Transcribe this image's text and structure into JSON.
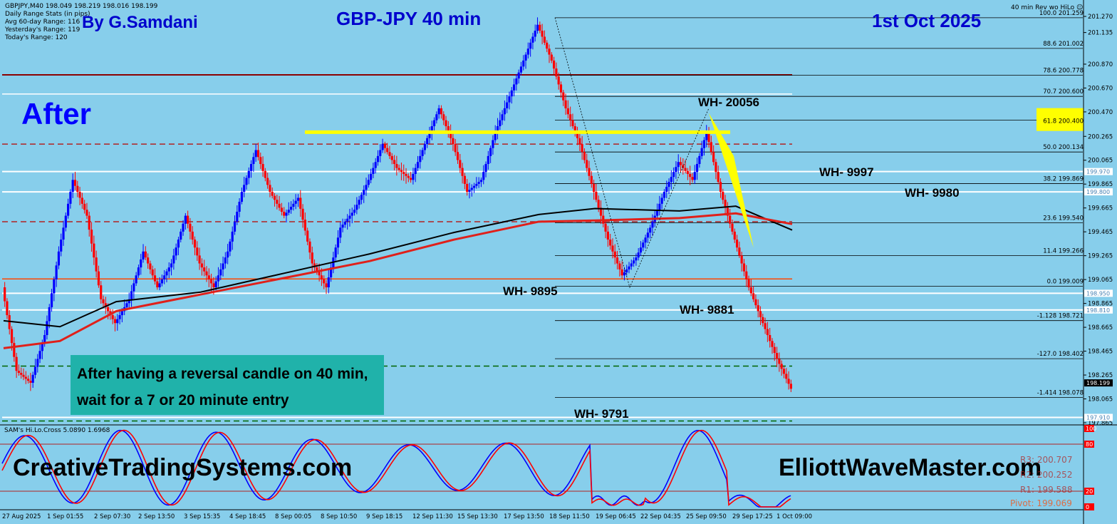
{
  "header": {
    "symbol_line": "GBPJPY,M40  198.049 198.219 198.016 198.199",
    "stats_title": "Daily Range Stats (in pips)",
    "stats_avg": "Avg 60-day Range: 116",
    "stats_yesterday": "Yesterday's Range: 119",
    "stats_today": "Today's Range: 120",
    "indicator_name": "40 min Rev wo HiLo"
  },
  "overlay": {
    "author": "By G.Samdani",
    "pair_title": "GBP-JPY 40 min",
    "date": "1st Oct 2025",
    "after_label": "After",
    "callout": "After having a reversal candle on 40 min, wait for a 7 or 20 minute entry",
    "site_left": "CreativeTradingSystems.com",
    "site_right": "ElliottWaveMaster.com"
  },
  "wave_labels": [
    "WH- 20056",
    "WH- 9997",
    "WH- 9980",
    "WH- 9895",
    "WH- 9881",
    "WH- 9791"
  ],
  "oscillator": {
    "name": "SAM's Hi.Lo.Cross 5.0890 1.6968",
    "scale_labels": [
      "100",
      "80",
      "20",
      "0"
    ],
    "pivot_overlay": [
      "R3: 200.707",
      "R2: 200.252",
      "R1: 199.588",
      "Pivot: 199.069"
    ]
  },
  "colors": {
    "background": "#87CEEB",
    "bull_candle": "#0000FF",
    "bear_candle": "#FF0000",
    "author_text": "#0000CD",
    "yellow_line": "#FFFF00",
    "callout_bg": "#20B2AA"
  },
  "chart_data": {
    "type": "candlestick",
    "title": "GBP-JPY 40 min",
    "symbol": "GBPJPY,M40",
    "ylim": [
      197.865,
      201.3
    ],
    "y_ticks": [
      "201.270",
      "201.135",
      "200.870",
      "200.670",
      "200.470",
      "200.265",
      "200.065",
      "199.865",
      "199.665",
      "199.465",
      "199.265",
      "199.065",
      "198.865",
      "198.665",
      "198.465",
      "198.265",
      "198.065",
      "197.865"
    ],
    "x_ticks": [
      "27 Aug 2025",
      "1 Sep 01:55",
      "2 Sep 07:30",
      "2 Sep 13:50",
      "3 Sep 15:35",
      "4 Sep 18:45",
      "8 Sep 00:05",
      "8 Sep 10:50",
      "9 Sep 18:15",
      "12 Sep 11:30",
      "15 Sep 13:30",
      "17 Sep 13:50",
      "18 Sep 11:50",
      "19 Sep 06:45",
      "22 Sep 04:35",
      "25 Sep 09:50",
      "29 Sep 17:25",
      "1 Oct 09:00"
    ],
    "price_path": [
      [
        0,
        199.0
      ],
      [
        1,
        198.3
      ],
      [
        2,
        198.2
      ],
      [
        3,
        198.6
      ],
      [
        4,
        199.3
      ],
      [
        5,
        199.9
      ],
      [
        6,
        199.6
      ],
      [
        7,
        198.9
      ],
      [
        8,
        198.7
      ],
      [
        9,
        198.9
      ],
      [
        10,
        199.3
      ],
      [
        11,
        199.0
      ],
      [
        12,
        199.2
      ],
      [
        13,
        199.6
      ],
      [
        14,
        199.2
      ],
      [
        15,
        199.0
      ],
      [
        16,
        199.3
      ],
      [
        17,
        199.8
      ],
      [
        18,
        200.15
      ],
      [
        19,
        199.8
      ],
      [
        20,
        199.6
      ],
      [
        21,
        199.75
      ],
      [
        22,
        199.2
      ],
      [
        23,
        199.0
      ],
      [
        24,
        199.5
      ],
      [
        25,
        199.65
      ],
      [
        26,
        199.9
      ],
      [
        27,
        200.2
      ],
      [
        28,
        200.0
      ],
      [
        29,
        199.9
      ],
      [
        30,
        200.2
      ],
      [
        31,
        200.5
      ],
      [
        32,
        200.2
      ],
      [
        33,
        199.8
      ],
      [
        34,
        199.9
      ],
      [
        35,
        200.3
      ],
      [
        36,
        200.6
      ],
      [
        37,
        200.9
      ],
      [
        38,
        201.2
      ],
      [
        39,
        200.9
      ],
      [
        40,
        200.5
      ],
      [
        41,
        200.2
      ],
      [
        42,
        199.8
      ],
      [
        43,
        199.4
      ],
      [
        44,
        199.1
      ],
      [
        45,
        199.25
      ],
      [
        46,
        199.5
      ],
      [
        47,
        199.8
      ],
      [
        48,
        200.05
      ],
      [
        49,
        199.9
      ],
      [
        50,
        200.3
      ],
      [
        51,
        199.8
      ],
      [
        52,
        199.4
      ],
      [
        53,
        199.0
      ],
      [
        54,
        198.7
      ],
      [
        55,
        198.4
      ],
      [
        56,
        198.15
      ]
    ],
    "fib_levels": [
      {
        "ratio": "100.0",
        "price": 201.259
      },
      {
        "ratio": "88.6",
        "price": 201.002
      },
      {
        "ratio": "78.6",
        "price": 200.778
      },
      {
        "ratio": "70.7",
        "price": 200.6
      },
      {
        "ratio": "61.8",
        "price": 200.4
      },
      {
        "ratio": "50.0",
        "price": 200.134
      },
      {
        "ratio": "38.2",
        "price": 199.869
      },
      {
        "ratio": "23.6",
        "price": 199.54
      },
      {
        "ratio": "11.4",
        "price": 199.266
      },
      {
        "ratio": "0.0",
        "price": 199.009
      },
      {
        "ratio": "-1.128",
        "price": 198.721
      },
      {
        "ratio": "-127.0",
        "price": 198.402
      },
      {
        "ratio": "-1.414",
        "price": 198.078
      }
    ],
    "white_levels": [
      {
        "price": 199.97,
        "label": "199.970"
      },
      {
        "price": 199.8,
        "label": "199.800"
      },
      {
        "price": 198.95,
        "label": "198.950"
      },
      {
        "price": 198.81,
        "label": "198.810"
      },
      {
        "price": 197.91,
        "label": "197.910"
      }
    ],
    "horizontal_lines": [
      {
        "price": 200.78,
        "color": "#8B0000",
        "style": "solid"
      },
      {
        "price": 200.62,
        "color": "#FFFFFF",
        "style": "solid"
      },
      {
        "price": 200.2,
        "color": "#B22222",
        "style": "dashed"
      },
      {
        "price": 199.55,
        "color": "#B22222",
        "style": "dashed"
      },
      {
        "price": 199.07,
        "color": "#FF4500",
        "style": "solid"
      },
      {
        "price": 198.34,
        "color": "#006400",
        "style": "dashed"
      },
      {
        "price": 197.88,
        "color": "#006400",
        "style": "dashed"
      }
    ],
    "current_price": {
      "price": 198.199,
      "label": "198.199"
    },
    "ma_black": [
      [
        0,
        198.72
      ],
      [
        4,
        198.67
      ],
      [
        8,
        198.88
      ],
      [
        14,
        198.96
      ],
      [
        20,
        199.12
      ],
      [
        26,
        199.28
      ],
      [
        32,
        199.46
      ],
      [
        38,
        199.61
      ],
      [
        42,
        199.66
      ],
      [
        48,
        199.64
      ],
      [
        52,
        199.68
      ],
      [
        56,
        199.48
      ]
    ],
    "ma_red": [
      [
        0,
        198.49
      ],
      [
        4,
        198.55
      ],
      [
        8,
        198.8
      ],
      [
        14,
        198.94
      ],
      [
        20,
        199.08
      ],
      [
        26,
        199.22
      ],
      [
        32,
        199.4
      ],
      [
        38,
        199.55
      ],
      [
        42,
        199.56
      ],
      [
        48,
        199.58
      ],
      [
        52,
        199.62
      ],
      [
        56,
        199.53
      ]
    ]
  }
}
